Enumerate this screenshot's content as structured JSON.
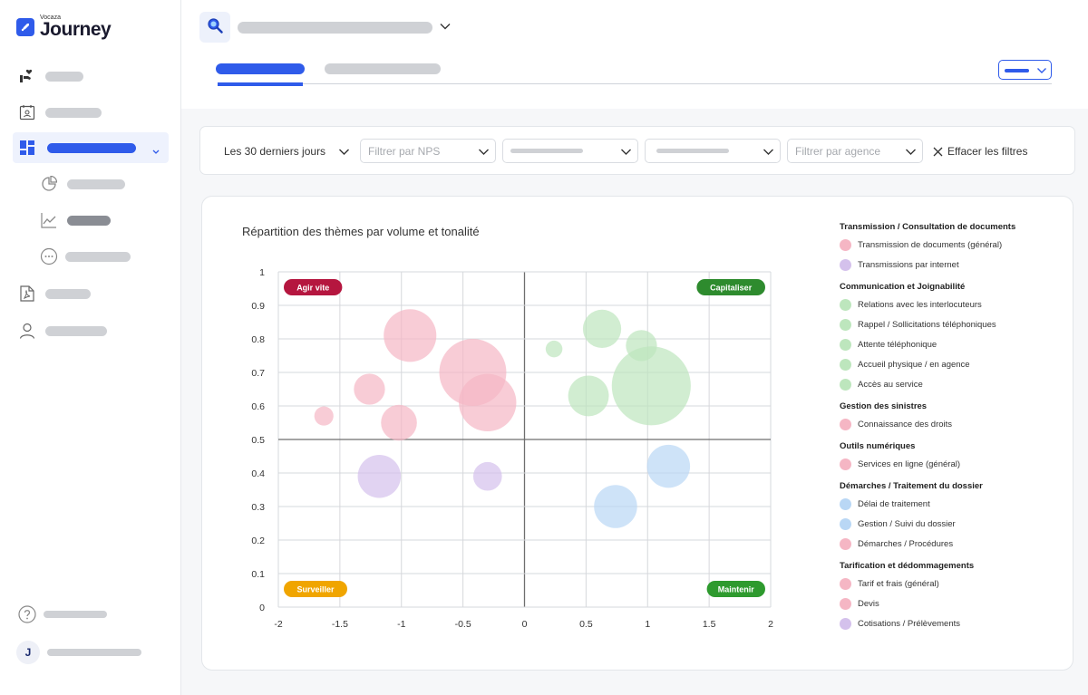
{
  "brand": {
    "small": "Vocaza",
    "name": "Journey"
  },
  "filters": {
    "date_range": "Les 30 derniers jours",
    "nps_placeholder": "Filtrer par NPS",
    "agency_placeholder": "Filtrer par agence",
    "clear_label": "Effacer les filtres"
  },
  "user": {
    "initial": "J"
  },
  "colors": {
    "accent": "#2f5bea",
    "pink": "#f5b6c4",
    "green": "#bde6bd",
    "blue": "#b9d7f5",
    "purple": "#d4c1ec"
  },
  "chart_data": {
    "type": "scatter",
    "title": "Répartition des thèmes par volume et tonalité",
    "xlim": [
      -2,
      2
    ],
    "ylim": [
      0,
      1
    ],
    "x_ticks": [
      -2,
      -1.5,
      -1,
      -0.5,
      0,
      0.5,
      1,
      1.5,
      2
    ],
    "y_ticks": [
      0,
      0.1,
      0.2,
      0.3,
      0.4,
      0.5,
      0.6,
      0.7,
      0.8,
      0.9,
      1
    ],
    "quadrants": [
      {
        "label": "Agir vite",
        "color": "#b5163f",
        "corner": "top-left"
      },
      {
        "label": "Capitaliser",
        "color": "#2e8b2e",
        "corner": "top-right"
      },
      {
        "label": "Surveiller",
        "color": "#f0a500",
        "corner": "bottom-left"
      },
      {
        "label": "Maintenir",
        "color": "#2e9a2e",
        "corner": "bottom-right"
      }
    ],
    "bubbles": [
      {
        "x": -0.93,
        "y": 0.81,
        "size": 22,
        "color": "pink"
      },
      {
        "x": -0.42,
        "y": 0.7,
        "size": 28,
        "color": "pink"
      },
      {
        "x": -0.3,
        "y": 0.61,
        "size": 24,
        "color": "pink"
      },
      {
        "x": -1.26,
        "y": 0.65,
        "size": 13,
        "color": "pink"
      },
      {
        "x": -1.63,
        "y": 0.57,
        "size": 8,
        "color": "pink"
      },
      {
        "x": -1.02,
        "y": 0.55,
        "size": 15,
        "color": "pink"
      },
      {
        "x": -1.18,
        "y": 0.39,
        "size": 18,
        "color": "purple"
      },
      {
        "x": -0.3,
        "y": 0.39,
        "size": 12,
        "color": "purple"
      },
      {
        "x": 0.63,
        "y": 0.83,
        "size": 16,
        "color": "green"
      },
      {
        "x": 0.95,
        "y": 0.78,
        "size": 13,
        "color": "green"
      },
      {
        "x": 0.24,
        "y": 0.77,
        "size": 7,
        "color": "green"
      },
      {
        "x": 1.03,
        "y": 0.66,
        "size": 33,
        "color": "green"
      },
      {
        "x": 0.52,
        "y": 0.63,
        "size": 17,
        "color": "green"
      },
      {
        "x": 1.17,
        "y": 0.42,
        "size": 18,
        "color": "blue"
      },
      {
        "x": 0.74,
        "y": 0.3,
        "size": 18,
        "color": "blue"
      }
    ]
  },
  "legend": [
    {
      "group": "Transmission / Consultation de documents",
      "items": [
        {
          "label": "Transmission de documents (général)",
          "color": "pink"
        },
        {
          "label": "Transmissions par internet",
          "color": "purple"
        }
      ]
    },
    {
      "group": "Communication et Joignabilité",
      "items": [
        {
          "label": "Relations avec les interlocuteurs",
          "color": "green"
        },
        {
          "label": "Rappel / Sollicitations téléphoniques",
          "color": "green"
        },
        {
          "label": "Attente téléphonique",
          "color": "green"
        },
        {
          "label": "Accueil physique / en agence",
          "color": "green"
        },
        {
          "label": "Accès au service",
          "color": "green"
        }
      ]
    },
    {
      "group": "Gestion des sinistres",
      "items": [
        {
          "label": "Connaissance des droits",
          "color": "pink"
        }
      ]
    },
    {
      "group": "Outils numériques",
      "items": [
        {
          "label": "Services en ligne (général)",
          "color": "pink"
        }
      ]
    },
    {
      "group": "Démarches / Traitement du dossier",
      "items": [
        {
          "label": "Délai de traitement",
          "color": "blue"
        },
        {
          "label": "Gestion / Suivi du dossier",
          "color": "blue"
        },
        {
          "label": "Démarches / Procédures",
          "color": "pink"
        }
      ]
    },
    {
      "group": "Tarification et dédommagements",
      "items": [
        {
          "label": "Tarif et frais (général)",
          "color": "pink"
        },
        {
          "label": "Devis",
          "color": "pink"
        },
        {
          "label": "Cotisations / Prélèvements",
          "color": "purple"
        }
      ]
    }
  ]
}
